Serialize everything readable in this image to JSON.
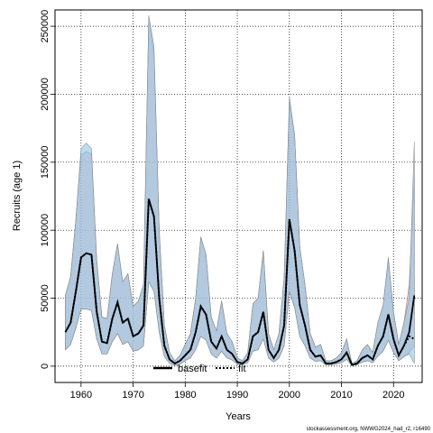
{
  "chart_data": {
    "type": "area",
    "xlabel": "Years",
    "ylabel": "Recruits (age 1)",
    "xlim": [
      1955,
      2025.5
    ],
    "ylim": [
      -12000,
      262000
    ],
    "x_ticks": [
      1960,
      1970,
      1980,
      1990,
      2000,
      2010,
      2020
    ],
    "y_ticks": [
      0,
      50000,
      100000,
      150000,
      200000,
      250000
    ],
    "y_tick_labels": [
      "0",
      "50000",
      "100000",
      "150000",
      "200000",
      "250000"
    ],
    "grid": true,
    "legend": {
      "placement": "bottom-center",
      "entries": [
        "basefit",
        "fit"
      ]
    },
    "colors": {
      "basefit_band": "#e8a0a0",
      "fit_band": "#87c8ec",
      "overlap": "#8fb3c4",
      "band_outline": "#8a8a8a",
      "line": "#000000"
    },
    "x": [
      1957,
      1958,
      1959,
      1960,
      1961,
      1962,
      1963,
      1964,
      1965,
      1966,
      1967,
      1968,
      1969,
      1970,
      1971,
      1972,
      1973,
      1974,
      1975,
      1976,
      1977,
      1978,
      1979,
      1980,
      1981,
      1982,
      1983,
      1984,
      1985,
      1986,
      1987,
      1988,
      1989,
      1990,
      1991,
      1992,
      1993,
      1994,
      1995,
      1996,
      1997,
      1998,
      1999,
      2000,
      2001,
      2002,
      2003,
      2004,
      2005,
      2006,
      2007,
      2008,
      2009,
      2010,
      2011,
      2012,
      2013,
      2014,
      2015,
      2016,
      2017,
      2018,
      2019,
      2020,
      2021,
      2022,
      2023,
      2024
    ],
    "series": [
      {
        "name": "basefit",
        "values": [
          25000,
          32000,
          55000,
          80000,
          83000,
          82000,
          40000,
          18000,
          17000,
          35000,
          47000,
          32000,
          35000,
          22000,
          24000,
          30000,
          123000,
          110000,
          50000,
          15000,
          5000,
          2000,
          4000,
          8000,
          12000,
          25000,
          44000,
          38000,
          18000,
          13000,
          22000,
          12000,
          9000,
          3000,
          2000,
          5000,
          22000,
          25000,
          40000,
          12000,
          6000,
          12000,
          30000,
          108000,
          85000,
          45000,
          30000,
          12000,
          7000,
          8000,
          2000,
          2000,
          3000,
          5000,
          10000,
          1000,
          2000,
          6000,
          8000,
          5000,
          15000,
          22000,
          38000,
          20000,
          8000,
          15000,
          25000,
          52000
        ],
        "lower": [
          12000,
          16000,
          28000,
          42000,
          42000,
          41000,
          20000,
          9000,
          9000,
          18000,
          24000,
          16000,
          18000,
          11000,
          12000,
          15000,
          62000,
          55000,
          25000,
          7000,
          2000,
          500,
          1500,
          4000,
          6000,
          12000,
          22000,
          19000,
          9000,
          6000,
          11000,
          6000,
          4500,
          1500,
          1000,
          2500,
          11000,
          12000,
          20000,
          6000,
          3000,
          6000,
          15000,
          55000,
          43000,
          22000,
          15000,
          6000,
          3500,
          4000,
          1000,
          1000,
          1500,
          2500,
          5000,
          500,
          1000,
          3000,
          4000,
          2500,
          7500,
          11000,
          19000,
          10000,
          4000,
          7000,
          10000,
          15000
        ],
        "upper": [
          52000,
          66000,
          108000,
          155000,
          158000,
          156000,
          78000,
          36000,
          35000,
          68000,
          90000,
          62000,
          68000,
          44000,
          48000,
          60000,
          255000,
          230000,
          100000,
          30000,
          10000,
          4000,
          8000,
          16000,
          24000,
          50000,
          95000,
          82000,
          36000,
          26000,
          48000,
          24000,
          18000,
          6000,
          4000,
          10000,
          46000,
          50000,
          85000,
          24000,
          12000,
          24000,
          65000,
          195000,
          170000,
          88000,
          60000,
          24000,
          14000,
          16000,
          4000,
          4000,
          6000,
          10000,
          20000,
          2000,
          4000,
          12000,
          16000,
          10000,
          32000,
          45000,
          78000,
          40000,
          16000,
          32000,
          60000,
          140000
        ]
      },
      {
        "name": "fit",
        "values": [
          25000,
          32000,
          55000,
          80000,
          83000,
          82000,
          40000,
          18000,
          17000,
          35000,
          47000,
          32000,
          35000,
          22000,
          24000,
          30000,
          123000,
          110000,
          50000,
          15000,
          5000,
          2000,
          4000,
          8000,
          12000,
          25000,
          44000,
          38000,
          18000,
          13000,
          22000,
          12000,
          9000,
          3000,
          2000,
          5000,
          22000,
          25000,
          40000,
          12000,
          6000,
          12000,
          30000,
          108000,
          85000,
          45000,
          30000,
          12000,
          7000,
          8000,
          2000,
          2000,
          3000,
          5000,
          10000,
          1000,
          2000,
          6000,
          8000,
          5000,
          15000,
          22000,
          38000,
          20000,
          8000,
          15000,
          22000,
          20000
        ],
        "lower": [
          12000,
          16000,
          28000,
          42000,
          42000,
          41000,
          20000,
          9000,
          9000,
          18000,
          24000,
          16000,
          18000,
          11000,
          12000,
          15000,
          62000,
          55000,
          25000,
          7000,
          2000,
          500,
          1500,
          4000,
          6000,
          12000,
          22000,
          19000,
          9000,
          6000,
          11000,
          6000,
          4500,
          1500,
          1000,
          2500,
          11000,
          12000,
          20000,
          6000,
          3000,
          6000,
          15000,
          55000,
          43000,
          22000,
          15000,
          6000,
          3500,
          4000,
          1000,
          1000,
          1500,
          2500,
          5000,
          500,
          1000,
          3000,
          4000,
          2500,
          7500,
          11000,
          19000,
          10000,
          4000,
          7000,
          9000,
          2000
        ],
        "upper": [
          52000,
          66000,
          108000,
          160000,
          164000,
          160000,
          78000,
          36000,
          35000,
          68000,
          90000,
          62000,
          68000,
          44000,
          48000,
          60000,
          258000,
          235000,
          100000,
          30000,
          10000,
          4000,
          8000,
          16000,
          24000,
          50000,
          95000,
          82000,
          36000,
          26000,
          48000,
          24000,
          18000,
          6000,
          4000,
          10000,
          46000,
          50000,
          85000,
          24000,
          12000,
          24000,
          65000,
          198000,
          170000,
          88000,
          60000,
          24000,
          14000,
          16000,
          4000,
          4000,
          6000,
          10000,
          20000,
          2000,
          4000,
          12000,
          16000,
          10000,
          32000,
          45000,
          80000,
          40000,
          16000,
          32000,
          50000,
          165000
        ]
      }
    ],
    "footnote": "stockassessment.org, NWWG2024_had_r2, r16490"
  }
}
